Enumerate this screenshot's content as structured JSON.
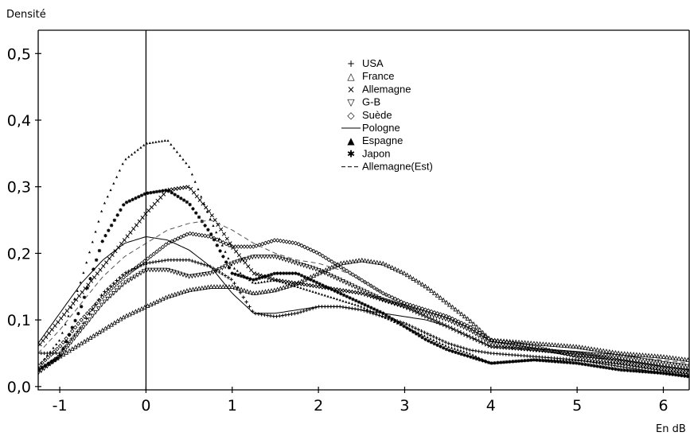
{
  "chart_data": {
    "type": "line",
    "ylabel": "Densité",
    "xlabel": "En dB",
    "xlim": [
      -1.25,
      6.3
    ],
    "ylim": [
      -0.005,
      0.535
    ],
    "xticks": [
      -1,
      0,
      1,
      2,
      3,
      4,
      5,
      6
    ],
    "yticks": [
      0.0,
      0.1,
      0.2,
      0.3,
      0.4,
      0.5
    ],
    "xtick_labels": [
      "-1",
      "0",
      "1",
      "2",
      "3",
      "4",
      "5",
      "6"
    ],
    "ytick_labels": [
      "0,0",
      "0,1",
      "0,2",
      "0,3",
      "0,4",
      "0,5"
    ],
    "vline_x": 0,
    "legend_position": "top-right",
    "series": [
      {
        "name": "USA",
        "marker": "+",
        "dash": "",
        "x": [
          -1.25,
          -1.0,
          -0.75,
          -0.5,
          -0.25,
          0.0,
          0.25,
          0.5,
          0.75,
          1.0,
          1.25,
          1.5,
          1.75,
          2.0,
          2.25,
          2.5,
          2.75,
          3.0,
          3.25,
          3.5,
          3.75,
          4.0,
          4.5,
          5.0,
          5.5,
          6.0,
          6.3
        ],
        "y": [
          0.05,
          0.05,
          0.09,
          0.14,
          0.17,
          0.185,
          0.19,
          0.19,
          0.18,
          0.16,
          0.11,
          0.105,
          0.11,
          0.12,
          0.12,
          0.115,
          0.105,
          0.095,
          0.08,
          0.065,
          0.055,
          0.05,
          0.045,
          0.04,
          0.03,
          0.02,
          0.015
        ]
      },
      {
        "name": "France",
        "marker": "△",
        "dash": "",
        "x": [
          -1.25,
          -1.0,
          -0.75,
          -0.5,
          -0.25,
          0.0,
          0.25,
          0.5,
          0.75,
          1.0,
          1.25,
          1.5,
          1.75,
          2.0,
          2.25,
          2.5,
          2.75,
          3.0,
          3.25,
          3.5,
          3.75,
          4.0,
          4.5,
          5.0,
          5.5,
          6.0,
          6.3
        ],
        "y": [
          0.025,
          0.045,
          0.065,
          0.085,
          0.105,
          0.12,
          0.135,
          0.145,
          0.15,
          0.15,
          0.14,
          0.145,
          0.155,
          0.17,
          0.185,
          0.19,
          0.185,
          0.17,
          0.15,
          0.125,
          0.1,
          0.07,
          0.065,
          0.06,
          0.05,
          0.045,
          0.04
        ]
      },
      {
        "name": "Allemagne",
        "marker": "×",
        "dash": "",
        "x": [
          -1.25,
          -1.0,
          -0.75,
          -0.5,
          -0.25,
          0.0,
          0.25,
          0.5,
          0.75,
          1.0,
          1.25,
          1.5,
          1.75,
          2.0,
          2.25,
          2.5,
          2.75,
          3.0,
          3.25,
          3.5,
          3.75,
          4.0,
          4.5,
          5.0,
          5.5,
          6.0,
          6.3
        ],
        "y": [
          0.06,
          0.1,
          0.14,
          0.18,
          0.22,
          0.26,
          0.295,
          0.3,
          0.26,
          0.21,
          0.17,
          0.16,
          0.155,
          0.15,
          0.145,
          0.14,
          0.13,
          0.12,
          0.105,
          0.09,
          0.075,
          0.06,
          0.055,
          0.05,
          0.04,
          0.03,
          0.025
        ]
      },
      {
        "name": "G-B",
        "marker": "▽",
        "dash": "",
        "x": [
          -1.25,
          -1.0,
          -0.75,
          -0.5,
          -0.25,
          0.0,
          0.25,
          0.5,
          0.75,
          1.0,
          1.25,
          1.5,
          1.75,
          2.0,
          2.25,
          2.5,
          2.75,
          3.0,
          3.25,
          3.5,
          3.75,
          4.0,
          4.5,
          5.0,
          5.5,
          6.0,
          6.3
        ],
        "y": [
          0.02,
          0.045,
          0.085,
          0.125,
          0.155,
          0.175,
          0.175,
          0.165,
          0.17,
          0.185,
          0.195,
          0.195,
          0.185,
          0.175,
          0.16,
          0.145,
          0.13,
          0.12,
          0.11,
          0.1,
          0.085,
          0.065,
          0.055,
          0.05,
          0.045,
          0.035,
          0.03
        ]
      },
      {
        "name": "Suède",
        "marker": "◇",
        "dash": "",
        "x": [
          -1.25,
          -1.0,
          -0.75,
          -0.5,
          -0.25,
          0.0,
          0.25,
          0.5,
          0.75,
          1.0,
          1.25,
          1.5,
          1.75,
          2.0,
          2.25,
          2.5,
          2.75,
          3.0,
          3.25,
          3.5,
          3.75,
          4.0,
          4.5,
          5.0,
          5.5,
          6.0,
          6.3
        ],
        "y": [
          0.03,
          0.06,
          0.1,
          0.135,
          0.165,
          0.19,
          0.215,
          0.23,
          0.225,
          0.21,
          0.21,
          0.22,
          0.215,
          0.2,
          0.18,
          0.16,
          0.14,
          0.125,
          0.115,
          0.105,
          0.09,
          0.07,
          0.06,
          0.045,
          0.035,
          0.025,
          0.02
        ]
      },
      {
        "name": "Pologne",
        "marker": "",
        "dash": "",
        "x": [
          -1.25,
          -1.0,
          -0.75,
          -0.5,
          -0.25,
          0.0,
          0.25,
          0.5,
          0.75,
          1.0,
          1.25,
          1.5,
          1.75,
          2.0,
          2.25,
          2.5,
          2.75,
          3.0,
          3.25,
          3.5,
          3.75,
          4.0,
          4.5,
          5.0,
          5.5,
          6.0,
          6.3
        ],
        "y": [
          0.065,
          0.11,
          0.155,
          0.19,
          0.215,
          0.225,
          0.22,
          0.205,
          0.18,
          0.14,
          0.11,
          0.11,
          0.115,
          0.12,
          0.12,
          0.115,
          0.11,
          0.105,
          0.1,
          0.09,
          0.075,
          0.06,
          0.055,
          0.045,
          0.04,
          0.03,
          0.025
        ]
      },
      {
        "name": "Espagne",
        "marker": "▲",
        "dash": "",
        "x": [
          -1.25,
          -1.0,
          -0.75,
          -0.5,
          -0.25,
          0.0,
          0.25,
          0.5,
          0.75,
          1.0,
          1.25,
          1.5,
          1.75,
          2.0,
          2.25,
          2.5,
          2.75,
          3.0,
          3.25,
          3.5,
          3.75,
          4.0,
          4.5,
          5.0,
          5.5,
          6.0,
          6.3
        ],
        "y": [
          0.03,
          0.07,
          0.16,
          0.27,
          0.34,
          0.365,
          0.37,
          0.33,
          0.25,
          0.18,
          0.155,
          0.16,
          0.15,
          0.14,
          0.13,
          0.12,
          0.105,
          0.09,
          0.075,
          0.06,
          0.05,
          0.035,
          0.04,
          0.04,
          0.035,
          0.025,
          0.02
        ]
      },
      {
        "name": "Japon",
        "marker": "✱",
        "dash": "",
        "x": [
          -1.25,
          -1.0,
          -0.75,
          -0.5,
          -0.25,
          0.0,
          0.25,
          0.5,
          0.75,
          1.0,
          1.25,
          1.5,
          1.75,
          2.0,
          2.25,
          2.5,
          2.75,
          3.0,
          3.25,
          3.5,
          3.75,
          4.0,
          4.5,
          5.0,
          5.5,
          6.0,
          6.3
        ],
        "y": [
          0.025,
          0.045,
          0.12,
          0.22,
          0.275,
          0.29,
          0.295,
          0.275,
          0.23,
          0.17,
          0.16,
          0.17,
          0.17,
          0.155,
          0.14,
          0.125,
          0.11,
          0.09,
          0.07,
          0.055,
          0.045,
          0.035,
          0.04,
          0.035,
          0.025,
          0.02,
          0.015
        ]
      },
      {
        "name": "Allemagne(Est)",
        "marker": "",
        "dash": "6,4",
        "x": [
          -1.25,
          -1.0,
          -0.75,
          -0.5,
          -0.25,
          0.0,
          0.25,
          0.5,
          0.75,
          1.0,
          1.25,
          1.5,
          1.75,
          2.0,
          2.25,
          2.5,
          2.75,
          3.0,
          3.25,
          3.5,
          3.75,
          4.0,
          4.5,
          5.0,
          5.5,
          6.0,
          6.3
        ],
        "y": [
          0.05,
          0.085,
          0.125,
          0.165,
          0.195,
          0.215,
          0.235,
          0.245,
          0.25,
          0.235,
          0.215,
          0.2,
          0.19,
          0.185,
          0.175,
          0.16,
          0.14,
          0.12,
          0.105,
          0.09,
          0.075,
          0.06,
          0.055,
          0.05,
          0.045,
          0.04,
          0.035
        ]
      }
    ]
  }
}
